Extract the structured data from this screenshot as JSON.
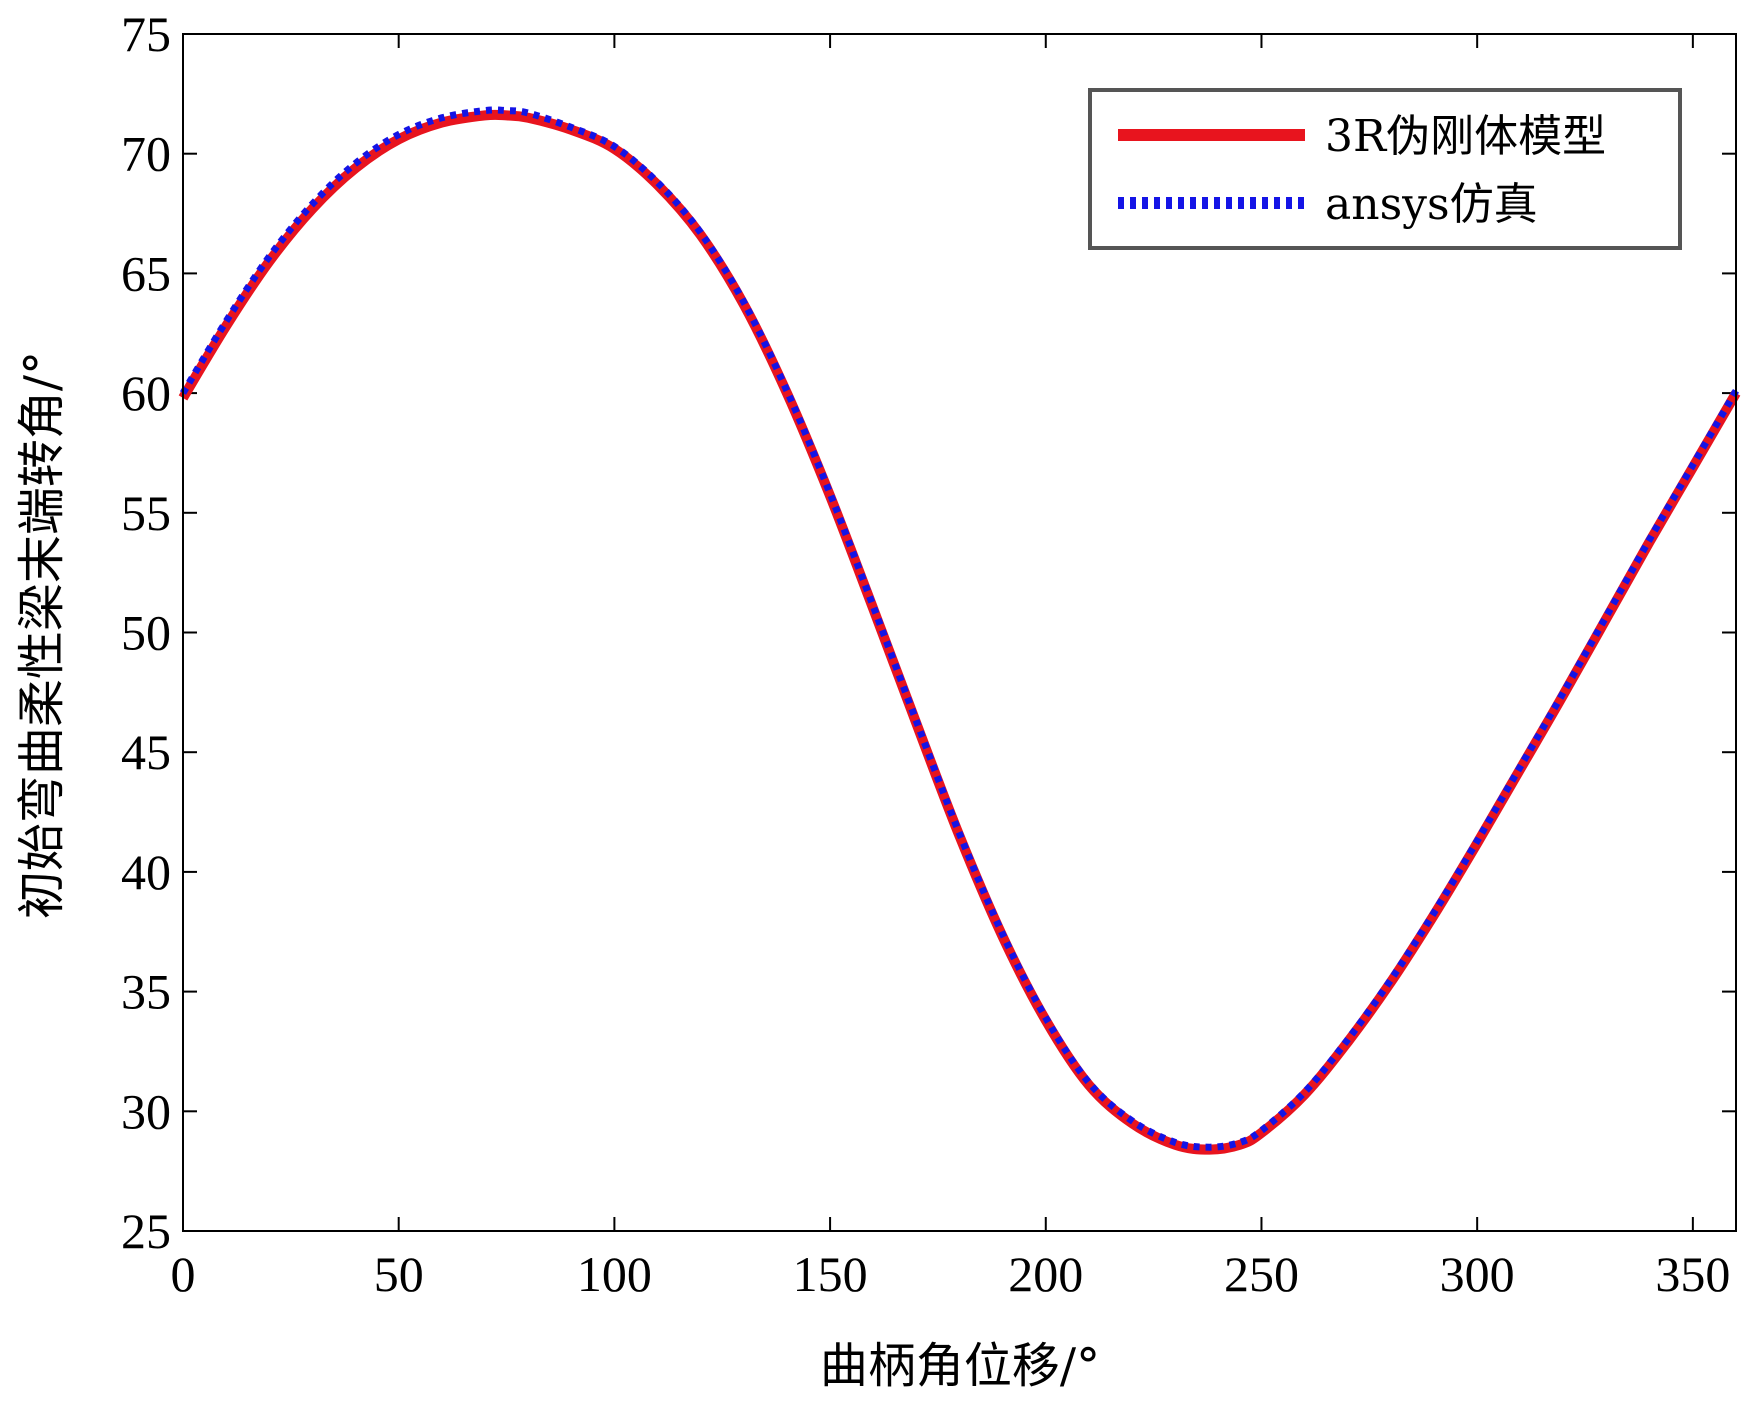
{
  "chart_data": {
    "type": "line",
    "title": "",
    "xlabel": "曲柄角位移/°",
    "ylabel": "初始弯曲柔性梁末端转角/°",
    "xlim": [
      0,
      360
    ],
    "ylim": [
      25,
      75
    ],
    "xticks": [
      0,
      50,
      100,
      150,
      200,
      250,
      300,
      350
    ],
    "yticks": [
      25,
      30,
      35,
      40,
      45,
      50,
      55,
      60,
      65,
      70,
      75
    ],
    "grid": false,
    "legend_position": "top-right",
    "x": [
      0,
      10,
      20,
      30,
      40,
      50,
      60,
      70,
      75,
      80,
      90,
      100,
      110,
      120,
      130,
      140,
      150,
      160,
      170,
      180,
      190,
      200,
      210,
      220,
      230,
      238,
      245,
      250,
      260,
      270,
      280,
      290,
      300,
      310,
      320,
      330,
      340,
      350,
      360
    ],
    "series": [
      {
        "name": "3R伪刚体模型",
        "color": "#e8141e",
        "style": "solid",
        "values": [
          59.8,
          62.8,
          65.5,
          67.7,
          69.4,
          70.6,
          71.3,
          71.6,
          71.6,
          71.5,
          71.0,
          70.2,
          68.7,
          66.6,
          63.7,
          60.0,
          55.7,
          51.0,
          46.2,
          41.5,
          37.3,
          33.8,
          31.1,
          29.5,
          28.6,
          28.4,
          28.6,
          29.1,
          30.7,
          32.9,
          35.4,
          38.2,
          41.2,
          44.3,
          47.4,
          50.6,
          53.8,
          56.9,
          60.0
        ]
      },
      {
        "name": "ansys仿真",
        "color": "#1414e6",
        "style": "dotted",
        "values": [
          60.0,
          63.0,
          65.7,
          67.9,
          69.6,
          70.8,
          71.5,
          71.8,
          71.8,
          71.7,
          71.1,
          70.3,
          68.8,
          66.7,
          63.8,
          60.1,
          55.8,
          51.1,
          46.3,
          41.6,
          37.4,
          33.9,
          31.2,
          29.6,
          28.7,
          28.5,
          28.7,
          29.2,
          30.8,
          33.0,
          35.5,
          38.3,
          41.3,
          44.4,
          47.5,
          50.7,
          53.9,
          57.0,
          60.1
        ]
      }
    ]
  }
}
